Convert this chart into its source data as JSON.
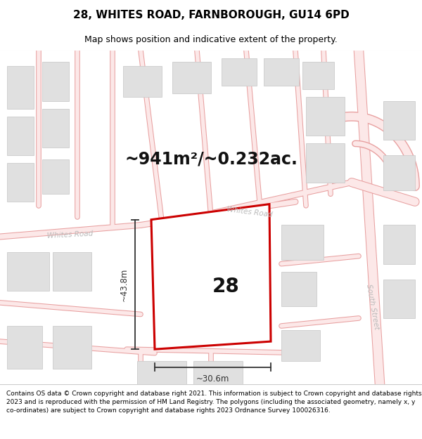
{
  "title": "28, WHITES ROAD, FARNBOROUGH, GU14 6PD",
  "subtitle": "Map shows position and indicative extent of the property.",
  "footer": "Contains OS data © Crown copyright and database right 2021. This information is subject to Crown copyright and database rights 2023 and is reproduced with the permission of HM Land Registry. The polygons (including the associated geometry, namely x, y co-ordinates) are subject to Crown copyright and database rights 2023 Ordnance Survey 100026316.",
  "area_label": "~941m²/~0.232ac.",
  "number_label": "28",
  "width_label": "~30.6m",
  "height_label": "~43.8m",
  "bg_color": "#ffffff",
  "map_bg": "#ffffff",
  "road_fill": "#fce8e8",
  "road_outline": "#e8a0a0",
  "building_fill": "#e0e0e0",
  "building_outline": "#cccccc",
  "plot_fill": "#ffffff",
  "plot_outline": "#cc0000",
  "plot_lw": 2.2,
  "dim_color": "#333333",
  "road_label_color": "#bbbbbb",
  "title_fontsize": 11,
  "subtitle_fontsize": 9,
  "footer_fontsize": 6.5,
  "area_fontsize": 17,
  "number_fontsize": 20,
  "dim_fontsize": 8.5
}
